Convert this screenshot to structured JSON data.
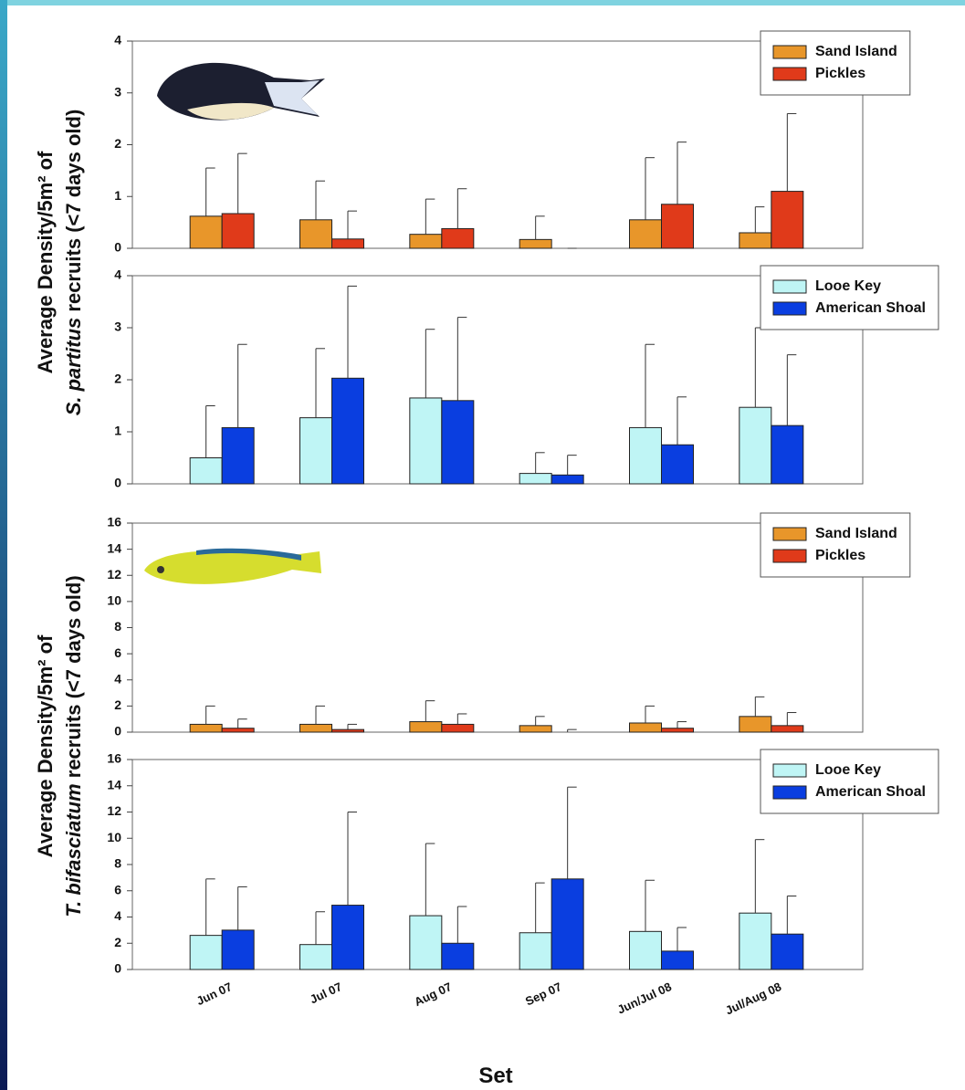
{
  "chart_data": [
    {
      "type": "bar",
      "ylabel": [
        "Average Density/5m² of",
        "S. partitus",
        " recruits (<7 days old)"
      ],
      "ylim": [
        0,
        4
      ],
      "yticks": [
        0,
        1,
        2,
        3,
        4
      ],
      "legend": "upper right",
      "series": [
        {
          "name": "Sand Island",
          "color": "#e8962a",
          "values": [
            0.62,
            0.55,
            0.27,
            0.17,
            0.55,
            0.3
          ],
          "errors": [
            0.93,
            0.75,
            0.68,
            0.45,
            1.2,
            0.5
          ]
        },
        {
          "name": "Pickles",
          "color": "#e03a1a",
          "values": [
            0.67,
            0.18,
            0.38,
            0,
            0.85,
            1.1
          ],
          "errors": [
            1.16,
            0.54,
            0.77,
            0,
            1.2,
            1.5
          ]
        }
      ]
    },
    {
      "type": "bar",
      "ylim": [
        0,
        4
      ],
      "yticks": [
        0,
        1,
        2,
        3,
        4
      ],
      "legend": "upper right",
      "series": [
        {
          "name": "Looe Key",
          "color": "#bff5f5",
          "values": [
            0.5,
            1.27,
            1.65,
            0.2,
            1.08,
            1.47
          ],
          "errors": [
            1.0,
            1.33,
            1.32,
            0.4,
            1.6,
            1.53
          ]
        },
        {
          "name": "American Shoal",
          "color": "#0a3ee0",
          "values": [
            1.08,
            2.03,
            1.6,
            0.17,
            0.75,
            1.12
          ],
          "errors": [
            1.6,
            1.77,
            1.6,
            0.38,
            0.92,
            1.36
          ]
        }
      ]
    },
    {
      "type": "bar",
      "ylabel": [
        "Average Density/5m² of",
        "T. bifasciatum",
        " recruits (<7 days old)"
      ],
      "ylim": [
        0,
        16
      ],
      "yticks": [
        0,
        2,
        4,
        6,
        8,
        10,
        12,
        14,
        16
      ],
      "legend": "upper right",
      "series": [
        {
          "name": "Sand Island",
          "color": "#e8962a",
          "values": [
            0.6,
            0.6,
            0.8,
            0.5,
            0.7,
            1.2
          ],
          "errors": [
            1.4,
            1.4,
            1.6,
            0.7,
            1.3,
            1.5
          ]
        },
        {
          "name": "Pickles",
          "color": "#e03a1a",
          "values": [
            0.3,
            0.2,
            0.6,
            0,
            0.3,
            0.5
          ],
          "errors": [
            0.7,
            0.4,
            0.8,
            0.2,
            0.5,
            1.0
          ]
        }
      ]
    },
    {
      "type": "bar",
      "xlabel": "Set",
      "categories": [
        "Jun 07",
        "Jul 07",
        "Aug 07",
        "Sep 07",
        "Jun/Jul 08",
        "Jul/Aug 08"
      ],
      "ylim": [
        0,
        16
      ],
      "yticks": [
        0,
        2,
        4,
        6,
        8,
        10,
        12,
        14,
        16
      ],
      "legend": "upper right",
      "series": [
        {
          "name": "Looe Key",
          "color": "#bff5f5",
          "values": [
            2.6,
            1.9,
            4.1,
            2.8,
            2.9,
            4.3
          ],
          "errors": [
            4.3,
            2.5,
            5.5,
            3.8,
            3.9,
            5.6
          ]
        },
        {
          "name": "American Shoal",
          "color": "#0a3ee0",
          "values": [
            3.0,
            4.9,
            2.0,
            6.9,
            1.4,
            2.7
          ],
          "errors": [
            3.3,
            7.1,
            2.8,
            7.0,
            1.8,
            2.9
          ]
        }
      ]
    }
  ]
}
